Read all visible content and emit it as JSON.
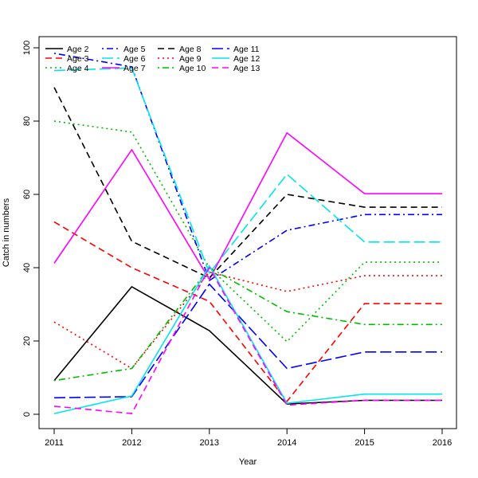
{
  "chart_data": {
    "type": "line",
    "title": "",
    "xlabel": "Year",
    "ylabel": "Catch in numbers",
    "x": [
      2011,
      2012,
      2013,
      2014,
      2015,
      2016
    ],
    "xlim": [
      2011,
      2016
    ],
    "ylim": [
      0,
      100
    ],
    "x_ticks": [
      "2011",
      "2012",
      "2013",
      "2014",
      "2015",
      "2016"
    ],
    "y_ticks": [
      "0",
      "20",
      "40",
      "60",
      "80",
      "100"
    ],
    "grid": false,
    "legend": {
      "position": "top-left",
      "columns": 4
    },
    "series": [
      {
        "name": "Age 2",
        "color": "#000000",
        "dash": "solid",
        "values": [
          9.2,
          34.8,
          22.8,
          2.8,
          3.8,
          3.8
        ]
      },
      {
        "name": "Age 3",
        "color": "#ff0000",
        "dash": "dashed",
        "values": [
          52.5,
          40.0,
          30.8,
          3.5,
          30.2,
          30.2
        ]
      },
      {
        "name": "Age 4",
        "color": "#00bb00",
        "dash": "dotted",
        "values": [
          80.0,
          77.0,
          40.0,
          19.8,
          41.5,
          41.5
        ]
      },
      {
        "name": "Age 5",
        "color": "#0000ff",
        "dash": "dotdash",
        "values": [
          98.5,
          94.8,
          36.5,
          50.2,
          54.5,
          54.5
        ]
      },
      {
        "name": "Age 6",
        "color": "#00e5ee",
        "dash": "longdash",
        "values": [
          93.8,
          94.5,
          38.5,
          65.5,
          47.0,
          47.0
        ]
      },
      {
        "name": "Age 7",
        "color": "#ff00ff",
        "dash": "solid",
        "values": [
          41.2,
          72.2,
          36.8,
          76.8,
          60.2,
          60.2
        ]
      },
      {
        "name": "Age 8",
        "color": "#000000",
        "dash": "dashed",
        "values": [
          89.2,
          47.2,
          37.2,
          60.0,
          56.5,
          56.5
        ]
      },
      {
        "name": "Age 9",
        "color": "#ff0000",
        "dash": "dotted",
        "values": [
          25.2,
          12.5,
          38.8,
          33.5,
          37.8,
          37.8
        ]
      },
      {
        "name": "Age 10",
        "color": "#00bb00",
        "dash": "dotdash",
        "values": [
          9.2,
          12.5,
          40.0,
          28.0,
          24.5,
          24.5
        ]
      },
      {
        "name": "Age 11",
        "color": "#0000ff",
        "dash": "longdash",
        "values": [
          4.5,
          4.8,
          35.5,
          12.5,
          17.0,
          17.0
        ]
      },
      {
        "name": "Age 12",
        "color": "#00e5ee",
        "dash": "solid",
        "values": [
          0.2,
          5.0,
          40.5,
          3.0,
          5.5,
          5.5
        ]
      },
      {
        "name": "Age 13",
        "color": "#ff00ff",
        "dash": "dashed",
        "values": [
          2.2,
          0.2,
          40.0,
          2.5,
          3.8,
          3.8
        ]
      }
    ]
  }
}
